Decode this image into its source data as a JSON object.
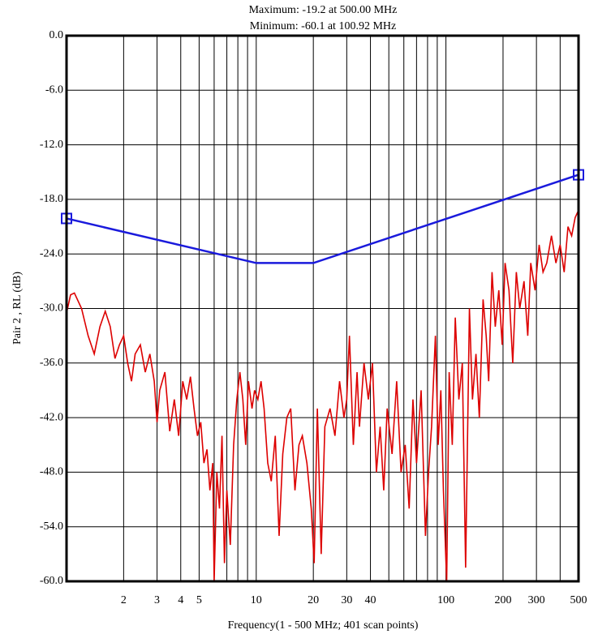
{
  "chart_data": {
    "type": "line",
    "title": [
      "Maximum: -19.2 at 500.00 MHz",
      "Minimum: -60.1 at 100.92 MHz"
    ],
    "xlabel": "Frequency(1 - 500 MHz; 401 scan points)",
    "ylabel": "Pair 2 , RL (dB)",
    "xscale": "log",
    "xlim": [
      1,
      500
    ],
    "ylim": [
      -60,
      0
    ],
    "xticks": [
      2,
      3,
      4,
      5,
      10,
      20,
      30,
      40,
      100,
      200,
      300,
      500
    ],
    "xgrid": [
      2,
      3,
      4,
      5,
      6,
      7,
      8,
      9,
      10,
      20,
      30,
      40,
      50,
      60,
      70,
      80,
      90,
      100,
      200,
      300,
      400
    ],
    "yticks": [
      {
        "value": 0,
        "label": "0.0"
      },
      {
        "value": -6,
        "label": "-6.0"
      },
      {
        "value": -12,
        "label": "-12.0"
      },
      {
        "value": -18,
        "label": "-18.0"
      },
      {
        "value": -24,
        "label": "-24.0"
      },
      {
        "value": -30,
        "label": "-30.0"
      },
      {
        "value": -36,
        "label": "-36.0"
      },
      {
        "value": -42,
        "label": "-42.0"
      },
      {
        "value": -48,
        "label": "-48.0"
      },
      {
        "value": -54,
        "label": "-54.0"
      },
      {
        "value": -60,
        "label": "-60.0"
      }
    ],
    "grid": true,
    "series": [
      {
        "color": "#1a1adc",
        "markers": "endpoints",
        "x": [
          1,
          10,
          20,
          500
        ],
        "values": [
          -20.1,
          -25,
          -25,
          -15.3
        ]
      },
      {
        "color": "#dd0000",
        "x": [
          1.0,
          1.05,
          1.1,
          1.2,
          1.3,
          1.4,
          1.5,
          1.6,
          1.7,
          1.8,
          1.9,
          2.0,
          2.1,
          2.2,
          2.3,
          2.45,
          2.6,
          2.75,
          2.9,
          3.0,
          3.1,
          3.3,
          3.5,
          3.7,
          3.9,
          4.1,
          4.3,
          4.5,
          4.7,
          4.9,
          5.1,
          5.3,
          5.5,
          5.7,
          5.9,
          6.0,
          6.2,
          6.4,
          6.6,
          6.8,
          7.0,
          7.3,
          7.6,
          7.9,
          8.2,
          8.5,
          8.8,
          9.1,
          9.5,
          9.8,
          10.2,
          10.6,
          11,
          11.5,
          12,
          12.6,
          13.2,
          13.8,
          14.5,
          15.2,
          16,
          16.8,
          17.5,
          18.5,
          19.5,
          20.2,
          21,
          22,
          23,
          24.5,
          26,
          27.5,
          29,
          30,
          31,
          32.5,
          34,
          35,
          37,
          39,
          41,
          43,
          45,
          47,
          49,
          52,
          55,
          58,
          61,
          64,
          67,
          70,
          74,
          78,
          81,
          84,
          88,
          91,
          94,
          97,
          100.92,
          104,
          108,
          112,
          117,
          122,
          127,
          133,
          138,
          144,
          150,
          157,
          163,
          168,
          175,
          182,
          190,
          198,
          205,
          215,
          225,
          235,
          245,
          258,
          270,
          280,
          295,
          310,
          325,
          340,
          360,
          380,
          400,
          420,
          440,
          460,
          480,
          500
        ],
        "values": [
          -30.5,
          -28.5,
          -28.3,
          -30,
          -33,
          -35,
          -32,
          -30.3,
          -32,
          -35.5,
          -34,
          -33,
          -36,
          -38,
          -35,
          -34,
          -37,
          -35,
          -38,
          -42.5,
          -39,
          -37,
          -43.5,
          -40,
          -44,
          -38,
          -40,
          -37.5,
          -41,
          -44,
          -42.5,
          -47,
          -45.5,
          -50,
          -47,
          -60,
          -48,
          -52,
          -44,
          -58,
          -50,
          -56,
          -45,
          -40,
          -37,
          -40,
          -45,
          -38,
          -41,
          -39,
          -40,
          -38,
          -41,
          -47,
          -49,
          -44,
          -55,
          -46,
          -42,
          -41,
          -50,
          -45,
          -44,
          -47,
          -52,
          -58,
          -41,
          -57,
          -43,
          -41,
          -44,
          -38,
          -42,
          -40,
          -33,
          -45,
          -37,
          -43,
          -36,
          -40,
          -36,
          -48,
          -43,
          -50,
          -41,
          -46,
          -38,
          -48,
          -45,
          -52,
          -40,
          -47,
          -39,
          -55,
          -48,
          -43,
          -33,
          -45,
          -39,
          -50,
          -60.1,
          -37,
          -45,
          -31,
          -40,
          -36,
          -58.5,
          -30,
          -40,
          -35,
          -42,
          -29,
          -33,
          -38,
          -26,
          -32,
          -28,
          -34,
          -25,
          -28,
          -36,
          -26,
          -30,
          -27,
          -33,
          -25,
          -28,
          -23,
          -26,
          -25,
          -22,
          -25,
          -23,
          -26,
          -21,
          -22,
          -20,
          -19.2
        ]
      }
    ]
  }
}
